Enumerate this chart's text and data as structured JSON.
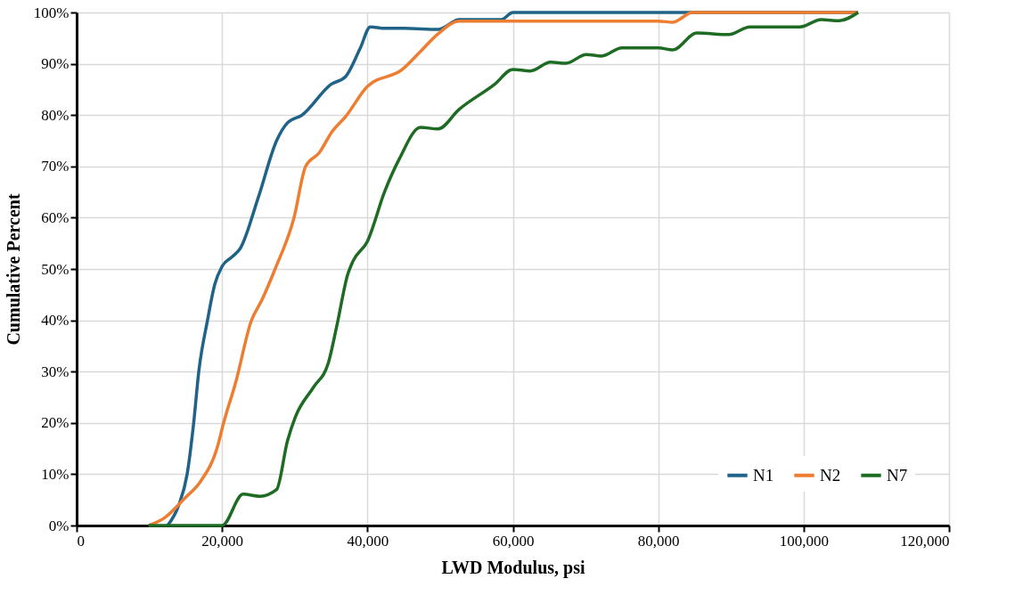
{
  "chart_data": {
    "type": "line",
    "xlabel": "LWD Modulus, psi",
    "ylabel": "Cumulative Percent",
    "xlim": [
      0,
      120000
    ],
    "ylim": [
      0,
      100
    ],
    "xticks": [
      0,
      {
        "value": 20000,
        "label": "20,000"
      },
      {
        "value": 40000,
        "label": "40,000"
      },
      {
        "value": 60000,
        "label": "60,000"
      },
      {
        "value": 80000,
        "label": "80,000"
      },
      {
        "value": 100000,
        "label": "100,000"
      },
      {
        "value": 120000,
        "label": "120,000"
      }
    ],
    "yticks": [
      {
        "value": 0,
        "label": "0%"
      },
      {
        "value": 10,
        "label": "10%"
      },
      {
        "value": 20,
        "label": "20%"
      },
      {
        "value": 30,
        "label": "30%"
      },
      {
        "value": 40,
        "label": "40%"
      },
      {
        "value": 50,
        "label": "50%"
      },
      {
        "value": 60,
        "label": "60%"
      },
      {
        "value": 70,
        "label": "70%"
      },
      {
        "value": 80,
        "label": "80%"
      },
      {
        "value": 90,
        "label": "90%"
      },
      {
        "value": 100,
        "label": "100%"
      }
    ],
    "grid": true,
    "legend": "bottom right",
    "marker": "none",
    "line_style": "solid",
    "series": [
      {
        "name": "N1",
        "color": "#1f6389",
        "x": [
          12500,
          14000,
          15200,
          16100,
          16800,
          18000,
          19000,
          20000,
          21500,
          22500,
          25000,
          27500,
          29000,
          31000,
          35000,
          37000,
          39000,
          40400,
          42400,
          45000,
          49800,
          52600,
          58400,
          60000,
          107500
        ],
        "values": [
          0,
          3.8,
          10,
          20,
          30,
          40,
          47,
          50.5,
          52.5,
          54,
          64,
          75,
          78.5,
          80,
          86,
          87.5,
          93,
          97.2,
          96.9,
          96.9,
          96.7,
          98.6,
          98.6,
          100,
          100
        ]
      },
      {
        "name": "N2",
        "color": "#ed7d31",
        "x": [
          9900,
          12100,
          15000,
          17000,
          19500,
          20100,
          21900,
          24000,
          25500,
          27300,
          29900,
          31500,
          33400,
          35100,
          37000,
          40000,
          44800,
          47300,
          49700,
          52600,
          80000,
          82000,
          84700,
          107500
        ],
        "values": [
          0,
          1.5,
          5.5,
          8.5,
          16,
          19.4,
          28,
          39.8,
          44,
          50,
          60,
          70,
          72.7,
          76.7,
          79.7,
          85.6,
          88.9,
          92.4,
          95.8,
          98.3,
          98.3,
          98.1,
          100,
          100
        ]
      },
      {
        "name": "N7",
        "color": "#1e6b23",
        "x": [
          9900,
          20000,
          22900,
          25200,
          27500,
          29000,
          30100,
          32600,
          34600,
          35800,
          37300,
          38000,
          40000,
          42400,
          44400,
          47300,
          49700,
          52600,
          57500,
          60000,
          62400,
          65200,
          67300,
          70100,
          72200,
          75000,
          80000,
          82000,
          85300,
          89700,
          92600,
          99500,
          102400,
          104900,
          107500
        ],
        "values": [
          0,
          0,
          6.1,
          5.7,
          7,
          16.5,
          21.2,
          27,
          31.6,
          39,
          49,
          51.5,
          55.4,
          65.2,
          71.5,
          77.6,
          77.3,
          81.1,
          86,
          88.9,
          88.6,
          90.3,
          90.1,
          91.8,
          91.5,
          93.1,
          93.1,
          92.7,
          96,
          95.7,
          97.2,
          97.2,
          98.6,
          98.4,
          100
        ]
      }
    ]
  }
}
